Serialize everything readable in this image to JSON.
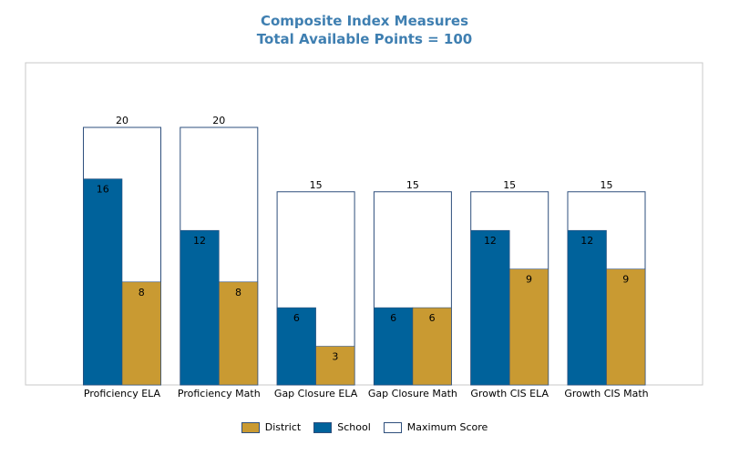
{
  "chart_data": {
    "type": "bar",
    "title": "Composite Index Measures",
    "subtitle": "Total Available Points = 100",
    "categories": [
      "Proficiency ELA",
      "Proficiency Math",
      "Gap Closure ELA",
      "Gap Closure Math",
      "Growth CIS ELA",
      "Growth CIS Math"
    ],
    "series": [
      {
        "name": "District",
        "color": "#c99a32",
        "values": [
          8,
          8,
          3,
          6,
          9,
          9
        ]
      },
      {
        "name": "School",
        "color": "#00629b",
        "values": [
          16,
          12,
          6,
          6,
          12,
          12
        ]
      },
      {
        "name": "Maximum Score",
        "color": "#ffffff",
        "values": [
          20,
          20,
          15,
          15,
          15,
          15
        ]
      }
    ],
    "ylim": [
      0,
      25
    ],
    "grid": false,
    "legend_position": "bottom"
  }
}
